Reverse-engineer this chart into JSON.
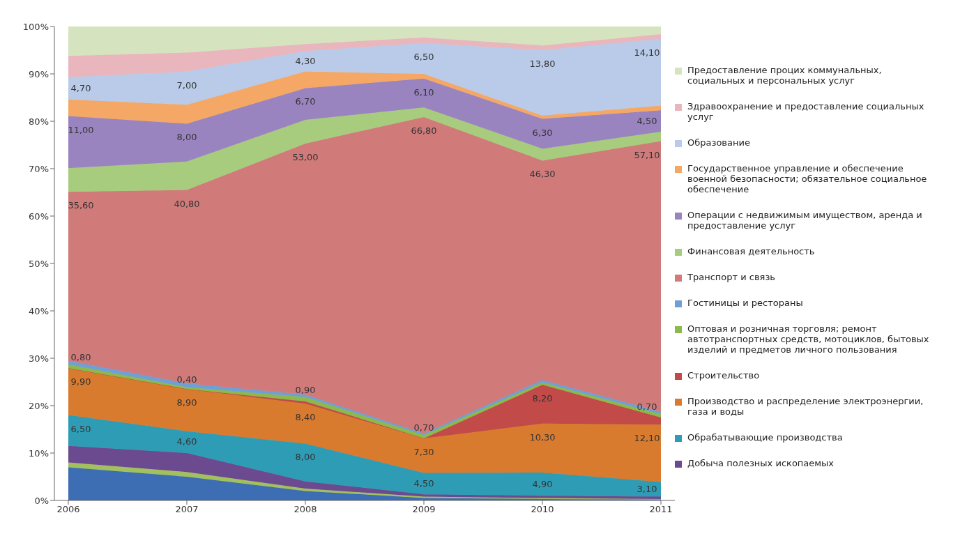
{
  "chart_data": {
    "type": "area",
    "stacked": true,
    "categories": [
      "2006",
      "2007",
      "2008",
      "2009",
      "2010",
      "2011"
    ],
    "ylim": [
      0,
      100
    ],
    "yticks": [
      {
        "value": 0,
        "label": "0%"
      },
      {
        "value": 10,
        "label": "10%"
      },
      {
        "value": 20,
        "label": "20%"
      },
      {
        "value": 30,
        "label": "30%"
      },
      {
        "value": 40,
        "label": "40%"
      },
      {
        "value": 50,
        "label": "50%"
      },
      {
        "value": 60,
        "label": "60%"
      },
      {
        "value": 70,
        "label": "70%"
      },
      {
        "value": 80,
        "label": "80%"
      },
      {
        "value": 90,
        "label": "90%"
      },
      {
        "value": 100,
        "label": "100%"
      }
    ],
    "grid": false,
    "legend": "right",
    "series": [
      {
        "color": "#3d6db3",
        "values": [
          7,
          5,
          2,
          0.5,
          0.3,
          0.2
        ]
      },
      {
        "color": "#a2c05e",
        "values": [
          1,
          1,
          0.5,
          0.3,
          0.2,
          0.1
        ]
      },
      {
        "name": "Добыча полезных ископаемых",
        "color": "#6c4a8f",
        "values": [
          3.5,
          4,
          1.5,
          0.5,
          0.5,
          0.5
        ]
      },
      {
        "name": "Обрабатывающие производства",
        "color": "#2f9cb5",
        "values": [
          6.5,
          4.6,
          8,
          4.5,
          4.9,
          3.1
        ],
        "value_labels": [
          "6,50",
          "4,60",
          "8,00",
          "4,50",
          "4,90",
          "3,10"
        ]
      },
      {
        "name": "Производство и распределение электроэнергии, газа и воды",
        "color": "#d97b2f",
        "values": [
          9.9,
          8.9,
          8.4,
          7.3,
          10.3,
          12.1
        ],
        "value_labels": [
          "9,90",
          "8,90",
          "8,40",
          "7,30",
          "10,30",
          "12,10"
        ]
      },
      {
        "name": "Строительство",
        "color": "#c24a48",
        "values": [
          0,
          0,
          0.5,
          0,
          8.2,
          1.5
        ],
        "value_labels": [
          null,
          null,
          null,
          null,
          "8,20",
          null
        ]
      },
      {
        "name": "Оптовая и розничная торговля; ремонт автотранспортных средств, мотоциклов, бытовых изделий и предметов личного пользования",
        "color": "#8db84a",
        "values": [
          0.8,
          0.4,
          0.9,
          0.7,
          0.5,
          0.7
        ],
        "value_labels": [
          "0,80",
          "0,40",
          "0,90",
          "0,70",
          null,
          "0,70"
        ]
      },
      {
        "name": "Гостиницы и рестораны",
        "color": "#6f9fd6",
        "values": [
          0.8,
          0.8,
          0.5,
          0.3,
          0.5,
          0.5
        ]
      },
      {
        "name": "Транспорт и связь",
        "color": "#d07a7a",
        "values": [
          35.6,
          40.8,
          53,
          66.8,
          46.3,
          57.1
        ],
        "value_labels": [
          "35,60",
          "40,80",
          "53,00",
          "66,80",
          "46,30",
          "57,10"
        ]
      },
      {
        "name": "Финансовая деятельность",
        "color": "#a8cc7e",
        "values": [
          5,
          6,
          5,
          2,
          2.5,
          2
        ]
      },
      {
        "name": "Операции с недвижимым имуществом, аренда и предоставление услуг",
        "color": "#9a84bf",
        "values": [
          11,
          8,
          6.7,
          6.1,
          6.3,
          4.5
        ],
        "value_labels": [
          "11,00",
          "8,00",
          "6,70",
          "6,10",
          "6,30",
          "4,50"
        ]
      },
      {
        "name": "Государственное управление и обеспечение военной безопасности; обязательное социальное обеспечение",
        "color": "#f5a865",
        "values": [
          3.5,
          4,
          3.5,
          1,
          0.7,
          1
        ]
      },
      {
        "name": "Образование",
        "color": "#b9cbe8",
        "values": [
          4.7,
          7,
          4.3,
          6.5,
          13.8,
          14.1
        ],
        "value_labels": [
          "4,70",
          "7,00",
          "4,30",
          "6,50",
          "13,80",
          "14,10"
        ]
      },
      {
        "name": "Здравоохранение и предоставление социальных услуг",
        "color": "#e8b6bc",
        "values": [
          4.5,
          4,
          1.5,
          1.2,
          1,
          1
        ]
      },
      {
        "name": "Предоставление процих коммунальных, социальных и персональных услуг",
        "color": "#d5e4be",
        "values": [
          6.2,
          5.5,
          3.7,
          2.3,
          4,
          1.6
        ]
      }
    ]
  }
}
